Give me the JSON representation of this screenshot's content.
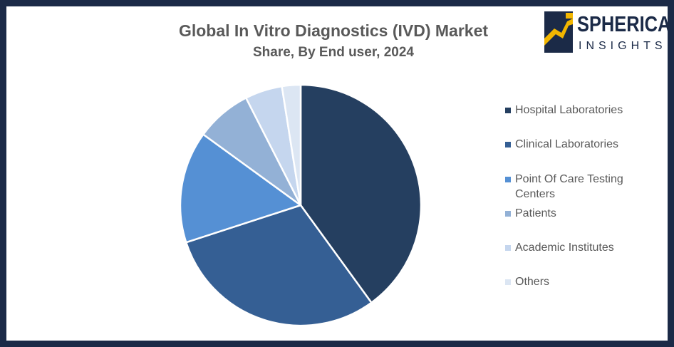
{
  "header": {
    "title": "Global In Vitro Diagnostics (IVD) Market",
    "subtitle": "Share, By End user, 2024"
  },
  "logo": {
    "word1": "SPHERICAL",
    "word2": "INSIGHTS",
    "colors": {
      "navy": "#1b2a47",
      "gold": "#f2b600"
    }
  },
  "chart_data": {
    "type": "pie",
    "title": "Global In Vitro Diagnostics (IVD) Market",
    "subtitle": "Share, By End user, 2024",
    "legend_position": "right",
    "categories": [
      "Hospital Laboratories",
      "Clinical Laboratories",
      "Point Of Care Testing Centers",
      "Patients",
      "Academic Institutes",
      "Others"
    ],
    "values": [
      40,
      30,
      15,
      7.5,
      5,
      2.5
    ],
    "colors": [
      "#253f60",
      "#355f94",
      "#5590d4",
      "#93b1d6",
      "#c5d6ee",
      "#dce6f3"
    ]
  }
}
